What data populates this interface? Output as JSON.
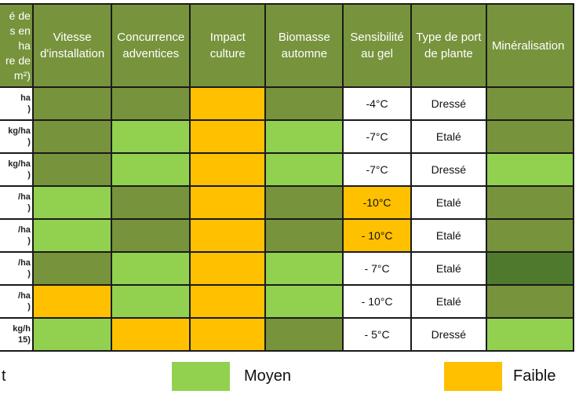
{
  "headers": [
    "é de\ns en\nha\nre de\nm²)",
    "Vitesse\nd'installation",
    "Concurrence\nadventices",
    "Impact\nculture",
    "Biomasse\nautomne",
    "Sensibilité\nau gel",
    "Type de port\nde plante",
    "Minéralisation"
  ],
  "rows": [
    {
      "label": "ha\n)",
      "cells": [
        "fort",
        "fort",
        "faible",
        "fort",
        "-4°C",
        "Dressé",
        "fort"
      ]
    },
    {
      "label": "kg/ha\n)",
      "cells": [
        "fort",
        "moyen",
        "faible",
        "moyen",
        "-7°C",
        "Etalé",
        "fort"
      ]
    },
    {
      "label": "kg/ha\n)",
      "cells": [
        "fort",
        "moyen",
        "faible",
        "moyen",
        "-7°C",
        "Dressé",
        "moyen"
      ]
    },
    {
      "label": "/ha\n)",
      "cells": [
        "moyen",
        "fort",
        "faible",
        "fort",
        "-10°C",
        "Etalé",
        "fort"
      ]
    },
    {
      "label": "/ha\n)",
      "cells": [
        "moyen",
        "fort",
        "faible",
        "fort",
        "- 10°C",
        "Etalé",
        "fort"
      ]
    },
    {
      "label": "/ha\n)",
      "cells": [
        "fort",
        "moyen",
        "faible",
        "moyen",
        "- 7°C",
        "Etalé",
        "dark"
      ]
    },
    {
      "label": "/ha\n)",
      "cells": [
        "faible",
        "moyen",
        "faible",
        "moyen",
        "- 10°C",
        "Etalé",
        "fort"
      ]
    },
    {
      "label": "kg/h\n15)",
      "cells": [
        "moyen",
        "faible",
        "faible",
        "fort",
        "- 5°C",
        "Dressé",
        "moyen"
      ]
    }
  ],
  "gel_highlight": [
    "plain",
    "plain",
    "plain",
    "faible",
    "faible",
    "plain",
    "plain",
    "plain"
  ],
  "legend": [
    {
      "key": "fort",
      "label": "t",
      "color": "#77933c"
    },
    {
      "key": "moyen",
      "label": "Moyen",
      "color": "#92d050"
    },
    {
      "key": "faible",
      "label": "Faible",
      "color": "#ffc000"
    }
  ],
  "colors": {
    "fort": "#77933c",
    "moyen": "#92d050",
    "faible": "#ffc000",
    "dark": "#4f7a2e",
    "plain": "#ffffff",
    "border": "#1a1a1a"
  }
}
